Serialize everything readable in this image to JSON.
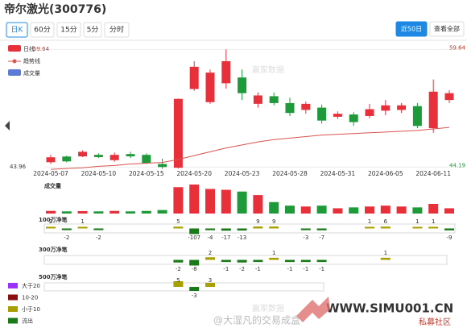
{
  "header": {
    "title": "帝尔激光(300776)",
    "tabs": [
      "日K",
      "60分",
      "15分",
      "5分",
      "分时"
    ],
    "range_buttons": [
      "近50日",
      "查看全部"
    ]
  },
  "chart_data": [
    {
      "type": "candlestick",
      "categories": [
        "2024-05-07",
        null,
        null,
        "2024-05-10",
        null,
        null,
        "2024-05-15",
        null,
        null,
        "2024-05-20",
        null,
        null,
        "2024-05-23",
        null,
        null,
        "2024-05-28",
        null,
        null,
        "2024-05-31",
        null,
        null,
        "2024-06-05",
        null,
        null,
        "2024-06-11",
        null
      ],
      "series": [
        {
          "name": "日线",
          "color": "#e8303a",
          "down_color": "#1f9a3a",
          "open": [
            44.83,
            45.58,
            45.6,
            45.8,
            45.1,
            45.9,
            45.8,
            44.6,
            44.1,
            54.45,
            52.72,
            55.2,
            55.96,
            52.5,
            53.5,
            52.6,
            51.7,
            52.0,
            50.8,
            51.1,
            50.9,
            51.6,
            51.7,
            52.2,
            49.3,
            53.0
          ],
          "close": [
            45.48,
            44.94,
            46.2,
            45.5,
            45.8,
            45.6,
            44.7,
            44.2,
            53.15,
            57.37,
            56.6,
            58.1,
            53.9,
            53.6,
            52.6,
            51.3,
            52.5,
            50.3,
            51.2,
            50.1,
            51.8,
            52.3,
            52.3,
            49.6,
            54.1,
            53.9
          ],
          "high": [
            45.8,
            45.7,
            46.4,
            46.0,
            46.1,
            46.2,
            46.0,
            45.3,
            53.2,
            58.1,
            57.0,
            59.64,
            57.0,
            54.0,
            54.0,
            53.3,
            52.8,
            52.4,
            51.5,
            51.4,
            52.5,
            53.0,
            52.6,
            52.6,
            55.7,
            54.3
          ],
          "low": [
            44.6,
            44.8,
            45.5,
            45.4,
            44.9,
            45.4,
            44.6,
            43.96,
            44.0,
            54.2,
            52.5,
            54.5,
            53.0,
            52.0,
            52.3,
            50.9,
            51.2,
            49.9,
            50.5,
            49.6,
            50.6,
            51.0,
            51.3,
            49.3,
            48.7,
            52.6
          ]
        },
        {
          "name": "趋势线",
          "color": "#d9534f",
          "values": [
            43.9,
            44.0,
            44.1,
            44.3,
            44.4,
            44.6,
            44.7,
            44.8,
            45.2,
            45.7,
            46.2,
            46.7,
            47.1,
            47.5,
            47.8,
            48.0,
            48.2,
            48.4,
            48.5,
            48.6,
            48.7,
            48.8,
            48.9,
            49.0,
            49.2,
            49.4
          ]
        }
      ],
      "max_label": 59.64,
      "min_label": 43.96,
      "ylim": [
        43.7,
        60
      ],
      "yticks": [
        59.64,
        44.19
      ],
      "grid": true
    },
    {
      "type": "bar",
      "title": "成交量",
      "name": "成交量",
      "color": "#5b7bd5",
      "values": [
        3,
        2.5,
        2.8,
        2.5,
        3,
        2.5,
        3,
        4,
        30,
        33,
        28,
        27,
        25,
        21,
        13,
        9,
        8,
        9,
        6,
        7,
        8,
        9,
        8,
        7,
        11,
        6
      ]
    },
    {
      "type": "net-bar",
      "title": "100万净笔",
      "values": [
        2,
        -2,
        1,
        -2,
        null,
        null,
        null,
        null,
        5,
        -107,
        -4,
        -17,
        -13,
        9,
        9,
        null,
        -3,
        -7,
        null,
        null,
        1,
        6,
        null,
        1,
        1,
        -9
      ]
    },
    {
      "type": "net-bar",
      "title": "300万净笔",
      "values": [
        null,
        null,
        null,
        null,
        null,
        null,
        null,
        null,
        -2,
        -8,
        2,
        -1,
        -2,
        -1,
        1,
        -1,
        -1,
        -1,
        null,
        null,
        null,
        1,
        null,
        null,
        null,
        null
      ]
    },
    {
      "type": "net-bar",
      "title": "500万净笔",
      "values": [
        null,
        null,
        null,
        null,
        null,
        null,
        null,
        null,
        5,
        -3,
        3,
        null,
        null,
        null,
        null,
        null,
        null,
        null,
        null,
        null,
        null,
        null,
        null,
        null,
        null,
        null
      ]
    }
  ],
  "net_legend": [
    {
      "name": "大于20",
      "color": "#9b30ff"
    },
    {
      "name": "10-20",
      "color": "#8b1010"
    },
    {
      "name": "小于10",
      "color": "#a8a000"
    },
    {
      "name": "流出",
      "color": "#1a7a1a"
    }
  ],
  "watermarks": [
    "赢家数据",
    "赢家数据",
    "@大湿凡的交易成盒",
    "WWW.SIMU001.CN",
    "私募社区"
  ]
}
